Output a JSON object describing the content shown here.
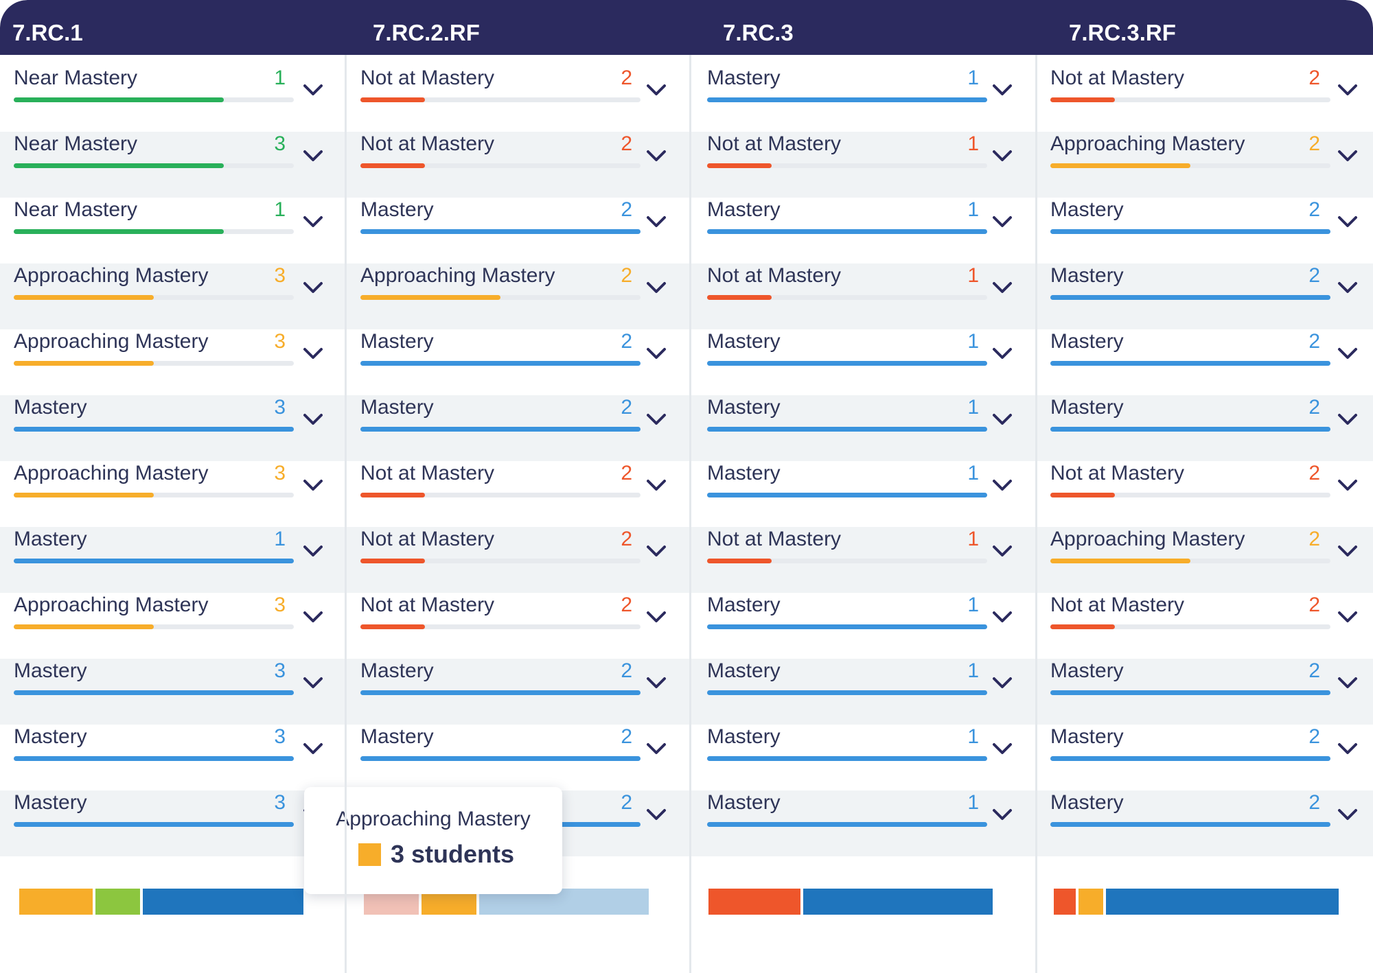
{
  "colors": {
    "header_bg": "#2b2a5e",
    "near_mastery": "#29b05a",
    "approaching_mastery": "#f7ad2a",
    "not_at_mastery": "#ee562b",
    "mastery": "#3a93dd",
    "bar_approaching": "#f7ad2a",
    "bar_near": "#8cc63f",
    "bar_mastery": "#1f75bd",
    "bar_not": "#ee562b",
    "bar_not_faded": "#f1c1b6",
    "bar_mastery_faded": "#b1cfe6"
  },
  "icons": {
    "expand": "chevron-down-icon"
  },
  "columns": [
    {
      "title": "7.RC.1",
      "rows": [
        {
          "label": "Near Mastery",
          "count": "1",
          "status": "near",
          "fill": 0.75
        },
        {
          "label": "Near Mastery",
          "count": "3",
          "status": "near",
          "fill": 0.75
        },
        {
          "label": "Near Mastery",
          "count": "1",
          "status": "near",
          "fill": 0.75
        },
        {
          "label": "Approaching Mastery",
          "count": "3",
          "status": "approaching",
          "fill": 0.5
        },
        {
          "label": "Approaching Mastery",
          "count": "3",
          "status": "approaching",
          "fill": 0.5
        },
        {
          "label": "Mastery",
          "count": "3",
          "status": "mastery",
          "fill": 1
        },
        {
          "label": "Approaching Mastery",
          "count": "3",
          "status": "approaching",
          "fill": 0.5
        },
        {
          "label": "Mastery",
          "count": "1",
          "status": "mastery",
          "fill": 1
        },
        {
          "label": "Approaching Mastery",
          "count": "3",
          "status": "approaching",
          "fill": 0.5
        },
        {
          "label": "Mastery",
          "count": "3",
          "status": "mastery",
          "fill": 1
        },
        {
          "label": "Mastery",
          "count": "3",
          "status": "mastery",
          "fill": 1
        },
        {
          "label": "Mastery",
          "count": "3",
          "status": "mastery",
          "fill": 1
        }
      ],
      "summary": [
        {
          "status": "approaching",
          "share": 0.265
        },
        {
          "status": "near",
          "share": 0.165
        },
        {
          "status": "mastery",
          "share": 0.57
        }
      ]
    },
    {
      "title": "7.RC.2.RF",
      "rows": [
        {
          "label": "Not at Mastery",
          "count": "2",
          "status": "not",
          "fill": 0.23
        },
        {
          "label": "Not at Mastery",
          "count": "2",
          "status": "not",
          "fill": 0.23
        },
        {
          "label": "Mastery",
          "count": "2",
          "status": "mastery",
          "fill": 1
        },
        {
          "label": "Approaching Mastery",
          "count": "2",
          "status": "approaching",
          "fill": 0.5
        },
        {
          "label": "Mastery",
          "count": "2",
          "status": "mastery",
          "fill": 1
        },
        {
          "label": "Mastery",
          "count": "2",
          "status": "mastery",
          "fill": 1
        },
        {
          "label": "Not at Mastery",
          "count": "2",
          "status": "not",
          "fill": 0.23
        },
        {
          "label": "Not at Mastery",
          "count": "2",
          "status": "not",
          "fill": 0.23
        },
        {
          "label": "Not at Mastery",
          "count": "2",
          "status": "not",
          "fill": 0.23
        },
        {
          "label": "Mastery",
          "count": "2",
          "status": "mastery",
          "fill": 1
        },
        {
          "label": "Mastery",
          "count": "2",
          "status": "mastery",
          "fill": 1
        },
        {
          "label": "Mastery",
          "count": "2",
          "status": "mastery",
          "fill": 1
        }
      ],
      "summary": [
        {
          "status": "not_faded",
          "share": 0.2
        },
        {
          "status": "approaching",
          "share": 0.2
        },
        {
          "status": "mastery_faded",
          "share": 0.6
        }
      ]
    },
    {
      "title": "7.RC.3",
      "rows": [
        {
          "label": "Mastery",
          "count": "1",
          "status": "mastery",
          "fill": 1
        },
        {
          "label": "Not at Mastery",
          "count": "1",
          "status": "not",
          "fill": 0.23
        },
        {
          "label": "Mastery",
          "count": "1",
          "status": "mastery",
          "fill": 1
        },
        {
          "label": "Not at Mastery",
          "count": "1",
          "status": "not",
          "fill": 0.23
        },
        {
          "label": "Mastery",
          "count": "1",
          "status": "mastery",
          "fill": 1
        },
        {
          "label": "Mastery",
          "count": "1",
          "status": "mastery",
          "fill": 1
        },
        {
          "label": "Mastery",
          "count": "1",
          "status": "mastery",
          "fill": 1
        },
        {
          "label": "Not at Mastery",
          "count": "1",
          "status": "not",
          "fill": 0.23
        },
        {
          "label": "Mastery",
          "count": "1",
          "status": "mastery",
          "fill": 1
        },
        {
          "label": "Mastery",
          "count": "1",
          "status": "mastery",
          "fill": 1
        },
        {
          "label": "Mastery",
          "count": "1",
          "status": "mastery",
          "fill": 1
        },
        {
          "label": "Mastery",
          "count": "1",
          "status": "mastery",
          "fill": 1
        }
      ],
      "summary": [
        {
          "status": "not",
          "share": 0.33
        },
        {
          "status": "mastery",
          "share": 0.67
        }
      ]
    },
    {
      "title": "7.RC.3.RF",
      "rows": [
        {
          "label": "Not at Mastery",
          "count": "2",
          "status": "not",
          "fill": 0.23
        },
        {
          "label": "Approaching Mastery",
          "count": "2",
          "status": "approaching",
          "fill": 0.5
        },
        {
          "label": "Mastery",
          "count": "2",
          "status": "mastery",
          "fill": 1
        },
        {
          "label": "Mastery",
          "count": "2",
          "status": "mastery",
          "fill": 1
        },
        {
          "label": "Mastery",
          "count": "2",
          "status": "mastery",
          "fill": 1
        },
        {
          "label": "Mastery",
          "count": "2",
          "status": "mastery",
          "fill": 1
        },
        {
          "label": "Not at Mastery",
          "count": "2",
          "status": "not",
          "fill": 0.23
        },
        {
          "label": "Approaching Mastery",
          "count": "2",
          "status": "approaching",
          "fill": 0.5
        },
        {
          "label": "Not at Mastery",
          "count": "2",
          "status": "not",
          "fill": 0.23
        },
        {
          "label": "Mastery",
          "count": "2",
          "status": "mastery",
          "fill": 1
        },
        {
          "label": "Mastery",
          "count": "2",
          "status": "mastery",
          "fill": 1
        },
        {
          "label": "Mastery",
          "count": "2",
          "status": "mastery",
          "fill": 1
        }
      ],
      "summary": [
        {
          "status": "not",
          "share": 0.085
        },
        {
          "status": "approaching",
          "share": 0.095
        },
        {
          "status": "mastery",
          "share": 0.82
        }
      ]
    }
  ],
  "tooltip": {
    "title": "Approaching Mastery",
    "value": "3 students"
  }
}
